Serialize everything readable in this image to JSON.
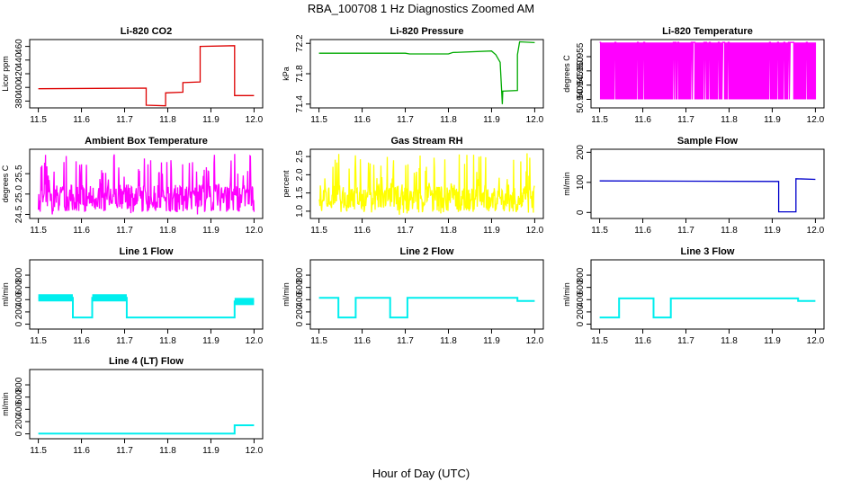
{
  "figure": {
    "title": "RBA_100708  1 Hz Diagnostics Zoomed AM",
    "xlabel": "Hour of Day (UTC)"
  },
  "chart_data": [
    {
      "type": "line",
      "title": "Li-820 CO2",
      "ylabel": "Licor ppm",
      "color": "#dd0000",
      "xlim": [
        11.48,
        12.02
      ],
      "xticks": [
        "11.5",
        "11.6",
        "11.7",
        "11.8",
        "11.9",
        "12.0"
      ],
      "ylim": [
        370,
        470
      ],
      "yticks": [
        380,
        400,
        420,
        440,
        460
      ],
      "series": [
        {
          "x": [
            11.5,
            11.75,
            11.75,
            11.795,
            11.795,
            11.835,
            11.835,
            11.875,
            11.875,
            11.955,
            11.955,
            12.0
          ],
          "values": [
            398,
            399,
            374,
            373,
            392,
            393,
            407,
            408,
            460,
            461,
            388,
            388
          ]
        }
      ]
    },
    {
      "type": "line",
      "title": "Li-820 Pressure",
      "ylabel": "kPa",
      "color": "#00aa00",
      "xlim": [
        11.48,
        12.02
      ],
      "xticks": [
        "11.5",
        "11.6",
        "11.7",
        "11.8",
        "11.9",
        "12.0"
      ],
      "ylim": [
        71.35,
        72.25
      ],
      "yticks": [
        71.4,
        71.8,
        72.2
      ],
      "series": [
        {
          "x": [
            11.5,
            11.7,
            11.71,
            11.8,
            11.81,
            11.9,
            11.91,
            11.92,
            11.925,
            11.926,
            11.96,
            11.96,
            11.965,
            12.0
          ],
          "values": [
            72.07,
            72.07,
            72.06,
            72.06,
            72.08,
            72.1,
            72.05,
            71.95,
            71.4,
            71.57,
            71.58,
            72.05,
            72.22,
            72.21
          ]
        }
      ]
    },
    {
      "type": "line",
      "title": "Li-820 Temperature",
      "ylabel": "degrees C",
      "color": "#ff00ff",
      "xlim": [
        11.48,
        12.02
      ],
      "xticks": [
        "11.5",
        "11.6",
        "11.7",
        "11.8",
        "11.9",
        "12.0"
      ],
      "ylim": [
        50.937,
        50.961
      ],
      "yticks": [
        50.94,
        50.945,
        50.95,
        50.955
      ],
      "series": [
        {
          "x": [
            11.5,
            12.0
          ],
          "values": [
            50.94,
            50.96
          ],
          "pattern": "oscillating between 50.94 and 50.96"
        }
      ]
    },
    {
      "type": "line",
      "title": "Ambient Box Temperature",
      "ylabel": "degrees C",
      "color": "#ff00ff",
      "xlim": [
        11.48,
        12.02
      ],
      "xticks": [
        "11.5",
        "11.6",
        "11.7",
        "11.8",
        "11.9",
        "12.0"
      ],
      "ylim": [
        24.4,
        26.1
      ],
      "yticks": [
        24.5,
        25.0,
        25.5
      ],
      "series": [
        {
          "x": [
            11.5,
            12.0
          ],
          "values": [
            24.9,
            25.0
          ],
          "range": [
            24.5,
            26.0
          ]
        }
      ]
    },
    {
      "type": "line",
      "title": "Gas Stream RH",
      "ylabel": "percent",
      "color": "#ffff00",
      "xlim": [
        11.48,
        12.02
      ],
      "xticks": [
        "11.5",
        "11.6",
        "11.7",
        "11.8",
        "11.9",
        "12.0"
      ],
      "ylim": [
        0.8,
        2.7
      ],
      "yticks": [
        1.0,
        1.5,
        2.0,
        2.5
      ],
      "series": [
        {
          "x": [
            11.5,
            12.0
          ],
          "values": [
            1.35,
            1.35
          ],
          "range": [
            0.9,
            2.6
          ]
        }
      ]
    },
    {
      "type": "line",
      "title": "Sample Flow",
      "ylabel": "ml/min",
      "color": "#0000cc",
      "xlim": [
        11.48,
        12.02
      ],
      "xticks": [
        "11.5",
        "11.6",
        "11.7",
        "11.8",
        "11.9",
        "12.0"
      ],
      "ylim": [
        -20,
        210
      ],
      "yticks": [
        0,
        100,
        200
      ],
      "series": [
        {
          "x": [
            11.5,
            11.915,
            11.915,
            11.955,
            11.955,
            12.0
          ],
          "values": [
            105,
            103,
            2,
            2,
            112,
            110
          ]
        }
      ]
    },
    {
      "type": "line",
      "title": "Line 1 Flow",
      "ylabel": "ml/min",
      "color": "#00eeee",
      "xlim": [
        11.48,
        12.02
      ],
      "xticks": [
        "11.5",
        "11.6",
        "11.7",
        "11.8",
        "11.9",
        "12.0"
      ],
      "ylim": [
        -80,
        1050
      ],
      "yticks": [
        0,
        200,
        400,
        600,
        800
      ],
      "series": [
        {
          "x": [
            11.5,
            11.58,
            11.58,
            11.625,
            11.625,
            11.705,
            11.705,
            11.955,
            11.955,
            12.0
          ],
          "values": [
            430,
            430,
            110,
            110,
            430,
            430,
            110,
            110,
            370,
            370
          ]
        }
      ]
    },
    {
      "type": "line",
      "title": "Line 2 Flow",
      "ylabel": "ml/min",
      "color": "#00eeee",
      "xlim": [
        11.48,
        12.02
      ],
      "xticks": [
        "11.5",
        "11.6",
        "11.7",
        "11.8",
        "11.9",
        "12.0"
      ],
      "ylim": [
        -80,
        1050
      ],
      "yticks": [
        0,
        200,
        400,
        600,
        800
      ],
      "series": [
        {
          "x": [
            11.5,
            11.545,
            11.545,
            11.585,
            11.585,
            11.665,
            11.665,
            11.705,
            11.705,
            11.96,
            11.96,
            12.0
          ],
          "values": [
            430,
            430,
            110,
            110,
            430,
            430,
            110,
            110,
            430,
            430,
            380,
            380
          ]
        }
      ]
    },
    {
      "type": "line",
      "title": "Line 3 Flow",
      "ylabel": "ml/min",
      "color": "#00eeee",
      "xlim": [
        11.48,
        12.02
      ],
      "xticks": [
        "11.5",
        "11.6",
        "11.7",
        "11.8",
        "11.9",
        "12.0"
      ],
      "ylim": [
        -80,
        1050
      ],
      "yticks": [
        0,
        200,
        400,
        600,
        800
      ],
      "series": [
        {
          "x": [
            11.5,
            11.545,
            11.545,
            11.625,
            11.625,
            11.665,
            11.665,
            11.96,
            11.96,
            12.0
          ],
          "values": [
            110,
            110,
            420,
            420,
            110,
            110,
            420,
            420,
            380,
            380
          ]
        }
      ]
    },
    {
      "type": "line",
      "title": "Line 4 (LT) Flow",
      "ylabel": "ml/min",
      "color": "#00eeee",
      "xlim": [
        11.48,
        12.02
      ],
      "xticks": [
        "11.5",
        "11.6",
        "11.7",
        "11.8",
        "11.9",
        "12.0"
      ],
      "ylim": [
        -80,
        1050
      ],
      "yticks": [
        0,
        200,
        400,
        600,
        800
      ],
      "series": [
        {
          "x": [
            11.5,
            11.955,
            11.955,
            12.0
          ],
          "values": [
            5,
            5,
            140,
            140
          ]
        }
      ]
    }
  ]
}
